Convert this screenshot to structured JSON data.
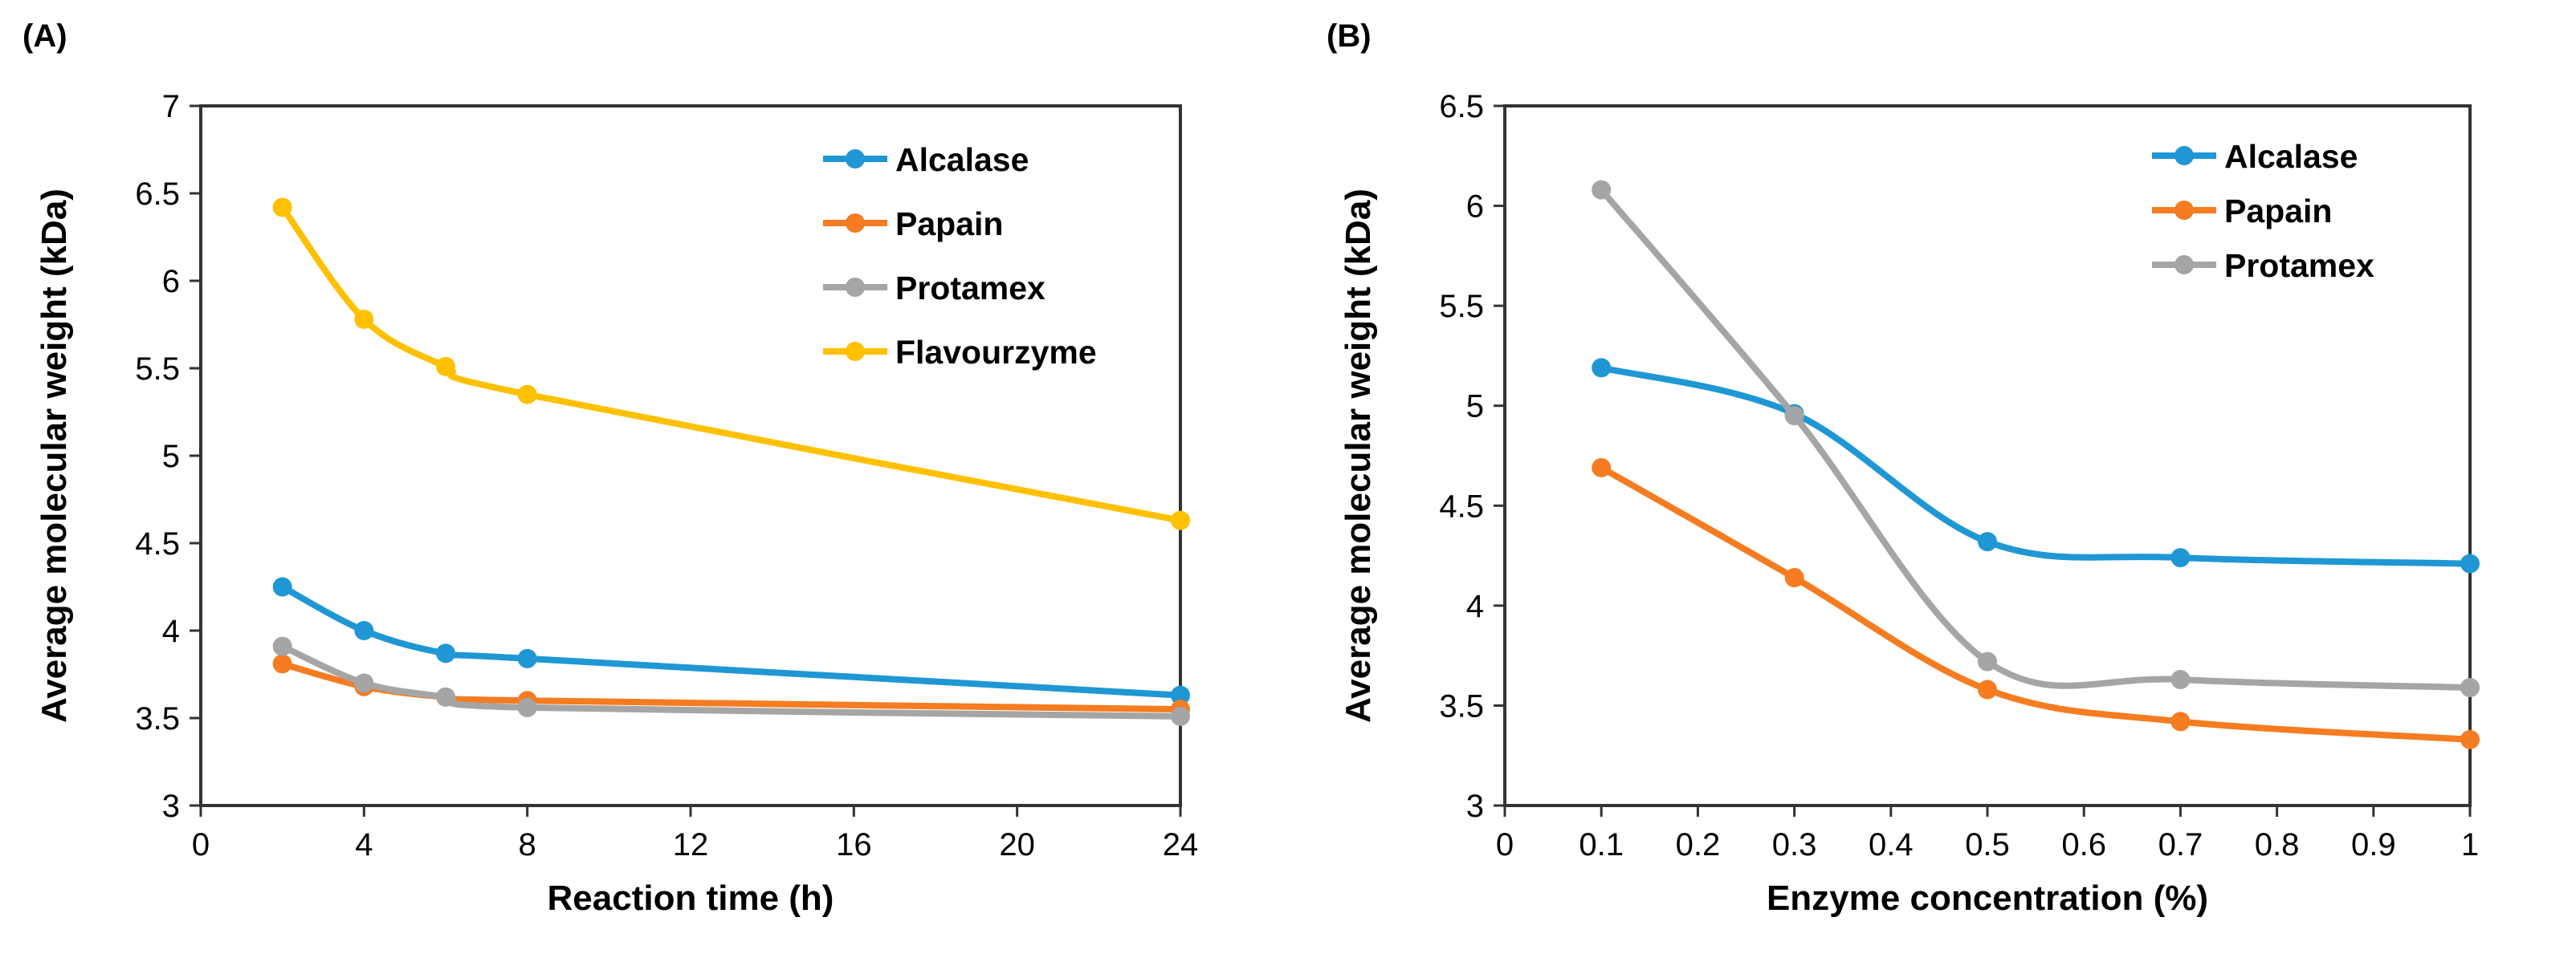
{
  "chart_data": [
    {
      "type": "line",
      "panel_label": "(A)",
      "xlabel": "Reaction time (h)",
      "ylabel": "Average molecular weight (kDa)",
      "xlim": [
        0,
        24
      ],
      "ylim": [
        3,
        7
      ],
      "xticks": [
        0,
        4,
        8,
        12,
        16,
        20,
        24
      ],
      "xtick_labels": [
        "0",
        "4",
        "8",
        "12",
        "16",
        "20",
        "24"
      ],
      "yticks": [
        3,
        3.5,
        4,
        4.5,
        5,
        5.5,
        6,
        6.5,
        7
      ],
      "ytick_labels": [
        "3",
        "3.5",
        "4",
        "4.5",
        "5",
        "5.5",
        "6",
        "6.5",
        "7"
      ],
      "grid": false,
      "legend_position": "top-right",
      "x": [
        2,
        4,
        6,
        8,
        24
      ],
      "series": [
        {
          "name": "Alcalase",
          "color": "#1f97d4",
          "values": [
            4.25,
            4.0,
            3.87,
            3.84,
            3.63
          ]
        },
        {
          "name": "Papain",
          "color": "#f57c20",
          "values": [
            3.81,
            3.68,
            3.62,
            3.6,
            3.55
          ]
        },
        {
          "name": "Protamex",
          "color": "#a5a5a5",
          "values": [
            3.91,
            3.7,
            3.62,
            3.56,
            3.51
          ]
        },
        {
          "name": "Flavourzyme",
          "color": "#ffc000",
          "values": [
            6.42,
            5.78,
            5.51,
            5.35,
            4.63
          ]
        }
      ]
    },
    {
      "type": "line",
      "panel_label": "(B)",
      "xlabel": "Enzyme concentration (%)",
      "ylabel": "Average molecular weight (kDa)",
      "xlim": [
        0,
        1
      ],
      "ylim": [
        3,
        6.5
      ],
      "xticks": [
        0,
        0.1,
        0.2,
        0.3,
        0.4,
        0.5,
        0.6,
        0.7,
        0.8,
        0.9,
        1
      ],
      "xtick_labels": [
        "0",
        "0.1",
        "0.2",
        "0.3",
        "0.4",
        "0.5",
        "0.6",
        "0.7",
        "0.8",
        "0.9",
        "1"
      ],
      "yticks": [
        3,
        3.5,
        4,
        4.5,
        5,
        5.5,
        6,
        6.5
      ],
      "ytick_labels": [
        "3",
        "3.5",
        "4",
        "4.5",
        "5",
        "5.5",
        "6",
        "6.5"
      ],
      "grid": false,
      "legend_position": "top-right",
      "x": [
        0.1,
        0.3,
        0.5,
        0.7,
        1.0
      ],
      "series": [
        {
          "name": "Alcalase",
          "color": "#1f97d4",
          "values": [
            5.19,
            4.96,
            4.32,
            4.24,
            4.21
          ]
        },
        {
          "name": "Papain",
          "color": "#f57c20",
          "values": [
            4.69,
            4.14,
            3.58,
            3.42,
            3.33
          ]
        },
        {
          "name": "Protamex",
          "color": "#a5a5a5",
          "values": [
            6.08,
            4.95,
            3.72,
            3.63,
            3.59
          ]
        }
      ]
    }
  ]
}
